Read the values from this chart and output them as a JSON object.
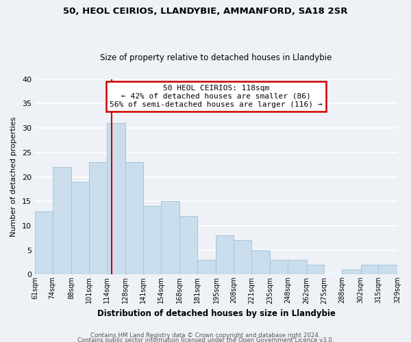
{
  "title_line1": "50, HEOL CEIRIOS, LLANDYBIE, AMMANFORD, SA18 2SR",
  "title_line2": "Size of property relative to detached houses in Llandybie",
  "xlabel": "Distribution of detached houses by size in Llandybie",
  "ylabel": "Number of detached properties",
  "bins": [
    61,
    74,
    88,
    101,
    114,
    128,
    141,
    154,
    168,
    181,
    195,
    208,
    221,
    235,
    248,
    262,
    275,
    288,
    302,
    315,
    329
  ],
  "bin_labels": [
    "61sqm",
    "74sqm",
    "88sqm",
    "101sqm",
    "114sqm",
    "128sqm",
    "141sqm",
    "154sqm",
    "168sqm",
    "181sqm",
    "195sqm",
    "208sqm",
    "221sqm",
    "235sqm",
    "248sqm",
    "262sqm",
    "275sqm",
    "288sqm",
    "302sqm",
    "315sqm",
    "329sqm"
  ],
  "counts": [
    13,
    22,
    19,
    23,
    31,
    23,
    14,
    15,
    12,
    3,
    8,
    7,
    5,
    3,
    3,
    2,
    0,
    1,
    2,
    2
  ],
  "bar_color": "#c9dded",
  "bar_edge_color": "#a8c4d8",
  "property_line_x": 118,
  "property_line_color": "#cc0000",
  "annotation_text": "50 HEOL CEIRIOS: 118sqm\n← 42% of detached houses are smaller (86)\n56% of semi-detached houses are larger (116) →",
  "annotation_box_facecolor": "#ffffff",
  "annotation_box_edgecolor": "#cc0000",
  "ylim": [
    0,
    40
  ],
  "yticks": [
    0,
    5,
    10,
    15,
    20,
    25,
    30,
    35,
    40
  ],
  "background_color": "#eef2f7",
  "grid_color": "#ffffff",
  "footer_line1": "Contains HM Land Registry data © Crown copyright and database right 2024.",
  "footer_line2": "Contains public sector information licensed under the Open Government Licence v3.0."
}
